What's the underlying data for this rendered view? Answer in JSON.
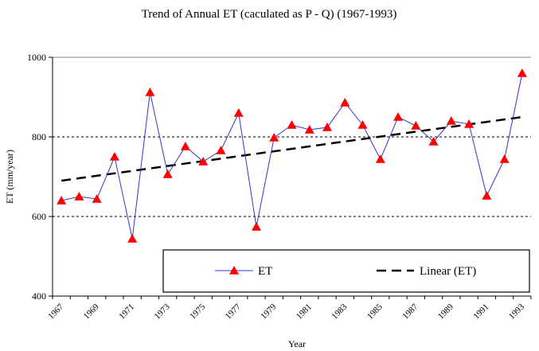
{
  "chart_data": {
    "type": "line",
    "title": "Trend of Annual ET (caculated as P - Q) (1967-1993)",
    "x_label": "Year",
    "y_label": "ET (mm/year)",
    "categories": [
      "1967",
      null,
      "1969",
      null,
      "1971",
      null,
      "1973",
      null,
      "1975",
      null,
      "1977",
      null,
      "1979",
      null,
      "1981",
      null,
      "1983",
      null,
      "1985",
      null,
      "1987",
      null,
      "1989",
      null,
      "1991",
      null,
      "1993"
    ],
    "series": [
      {
        "name": "ET",
        "color": "#3333cc",
        "marker_color": "#ff0000",
        "values": [
          640,
          650,
          644,
          750,
          544,
          912,
          706,
          776,
          738,
          766,
          860,
          574,
          798,
          830,
          818,
          824,
          886,
          830,
          744,
          850,
          828,
          788,
          840,
          832,
          652,
          744,
          960
        ]
      }
    ],
    "trend": {
      "name": "Linear (ET)",
      "color": "#000000",
      "values": [
        690,
        850
      ]
    },
    "ylim": [
      400,
      1000
    ],
    "yticks": [
      400,
      600,
      800,
      1000
    ],
    "grid": true
  }
}
